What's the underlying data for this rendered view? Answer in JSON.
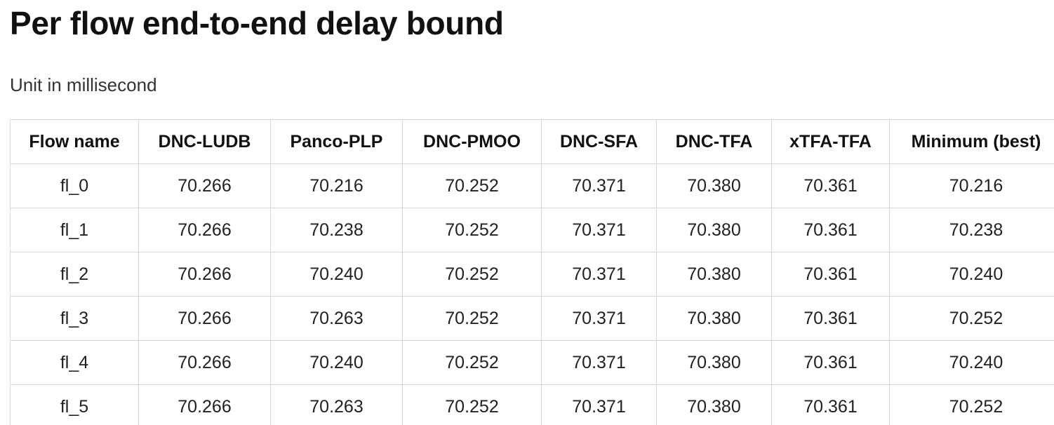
{
  "header": {
    "title": "Per flow end-to-end delay bound",
    "subtitle": "Unit in millisecond"
  },
  "table": {
    "columns": [
      "Flow name",
      "DNC-LUDB",
      "Panco-PLP",
      "DNC-PMOO",
      "DNC-SFA",
      "DNC-TFA",
      "xTFA-TFA",
      "Minimum (best)"
    ],
    "rows": [
      [
        "fl_0",
        "70.266",
        "70.216",
        "70.252",
        "70.371",
        "70.380",
        "70.361",
        "70.216"
      ],
      [
        "fl_1",
        "70.266",
        "70.238",
        "70.252",
        "70.371",
        "70.380",
        "70.361",
        "70.238"
      ],
      [
        "fl_2",
        "70.266",
        "70.240",
        "70.252",
        "70.371",
        "70.380",
        "70.361",
        "70.240"
      ],
      [
        "fl_3",
        "70.266",
        "70.263",
        "70.252",
        "70.371",
        "70.380",
        "70.361",
        "70.252"
      ],
      [
        "fl_4",
        "70.266",
        "70.240",
        "70.252",
        "70.371",
        "70.380",
        "70.361",
        "70.240"
      ],
      [
        "fl_5",
        "70.266",
        "70.263",
        "70.252",
        "70.371",
        "70.380",
        "70.361",
        "70.252"
      ]
    ]
  }
}
